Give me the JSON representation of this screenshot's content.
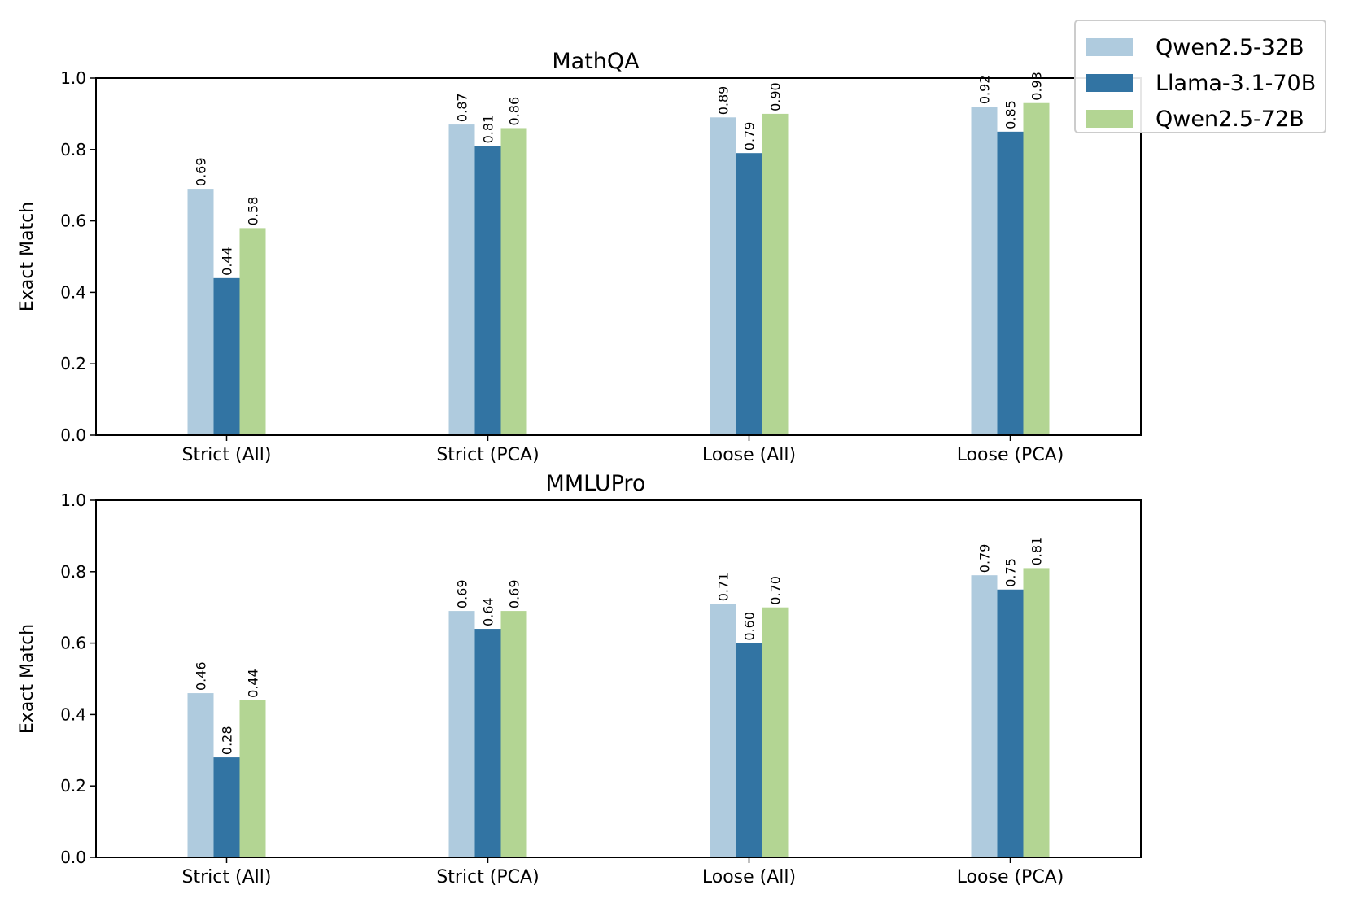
{
  "chart_data": [
    {
      "type": "bar",
      "title": "MathQA",
      "ylabel": "Exact Match",
      "xlabel": "",
      "ylim": [
        0,
        1.0
      ],
      "yticks": [
        "0.0",
        "0.2",
        "0.4",
        "0.6",
        "0.8",
        "1.0"
      ],
      "categories": [
        "Strict (All)",
        "Strict (PCA)",
        "Loose (All)",
        "Loose (PCA)"
      ],
      "series": [
        {
          "name": "Qwen2.5-32B",
          "values": [
            0.69,
            0.87,
            0.89,
            0.92
          ],
          "labels": [
            "0.69",
            "0.87",
            "0.89",
            "0.92"
          ]
        },
        {
          "name": "Llama-3.1-70B",
          "values": [
            0.44,
            0.81,
            0.79,
            0.85
          ],
          "labels": [
            "0.44",
            "0.81",
            "0.79",
            "0.85"
          ]
        },
        {
          "name": "Qwen2.5-72B",
          "values": [
            0.58,
            0.86,
            0.9,
            0.93
          ],
          "labels": [
            "0.58",
            "0.86",
            "0.90",
            "0.93"
          ]
        }
      ]
    },
    {
      "type": "bar",
      "title": "MMLUPro",
      "ylabel": "Exact Match",
      "xlabel": "",
      "ylim": [
        0,
        1.0
      ],
      "yticks": [
        "0.0",
        "0.2",
        "0.4",
        "0.6",
        "0.8",
        "1.0"
      ],
      "categories": [
        "Strict (All)",
        "Strict (PCA)",
        "Loose (All)",
        "Loose (PCA)"
      ],
      "series": [
        {
          "name": "Qwen2.5-32B",
          "values": [
            0.46,
            0.69,
            0.71,
            0.79
          ],
          "labels": [
            "0.46",
            "0.69",
            "0.71",
            "0.79"
          ]
        },
        {
          "name": "Llama-3.1-70B",
          "values": [
            0.28,
            0.64,
            0.6,
            0.75
          ],
          "labels": [
            "0.28",
            "0.64",
            "0.60",
            "0.75"
          ]
        },
        {
          "name": "Qwen2.5-72B",
          "values": [
            0.44,
            0.69,
            0.7,
            0.81
          ],
          "labels": [
            "0.44",
            "0.69",
            "0.70",
            "0.81"
          ]
        }
      ]
    }
  ],
  "legend": {
    "placement": "upper-right",
    "items": [
      {
        "label": "Qwen2.5-32B",
        "color": "#afcbde"
      },
      {
        "label": "Llama-3.1-70B",
        "color": "#3274a3"
      },
      {
        "label": "Qwen2.5-72B",
        "color": "#b3d593"
      }
    ]
  }
}
